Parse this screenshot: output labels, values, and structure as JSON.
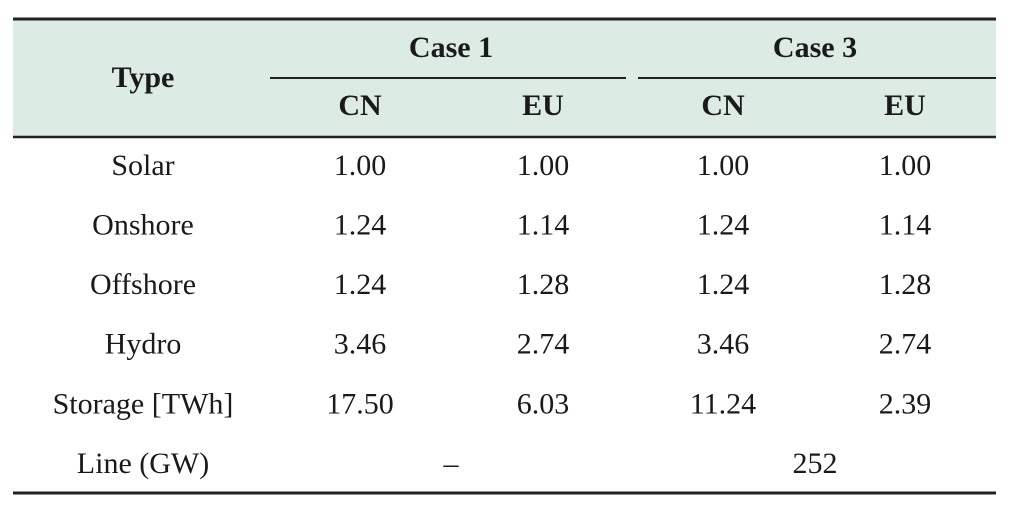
{
  "table": {
    "header": {
      "type": "Type",
      "groups": [
        "Case 1",
        "Case 3"
      ],
      "columns": [
        "CN",
        "EU",
        "CN",
        "EU"
      ]
    },
    "rows": [
      {
        "label": "Solar",
        "cells": [
          "1.00",
          "1.00",
          "1.00",
          "1.00"
        ]
      },
      {
        "label": "Onshore",
        "cells": [
          "1.24",
          "1.14",
          "1.24",
          "1.14"
        ]
      },
      {
        "label": "Offshore",
        "cells": [
          "1.24",
          "1.28",
          "1.24",
          "1.28"
        ]
      },
      {
        "label": "Hydro",
        "cells": [
          "3.46",
          "2.74",
          "3.46",
          "2.74"
        ]
      },
      {
        "label": "Storage [TWh]",
        "cells": [
          "17.50",
          "6.03",
          "11.24",
          "2.39"
        ]
      },
      {
        "label": "Line (GW)",
        "cells": [
          "–",
          "252"
        ]
      }
    ]
  }
}
